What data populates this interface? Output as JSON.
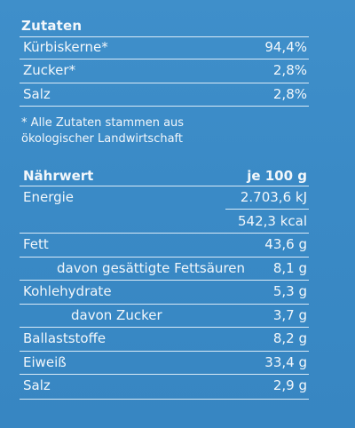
{
  "ingredients": {
    "title": "Zutaten",
    "items": [
      {
        "name": "Kürbiskerne*",
        "value": "94,4%"
      },
      {
        "name": "Zucker*",
        "value": "2,8%"
      },
      {
        "name": "Salz",
        "value": "2,8%"
      }
    ],
    "note_line1": "* Alle Zutaten stammen aus",
    "note_line2": "ökologischer Landwirtschaft"
  },
  "nutrition": {
    "header_label": "Nährwert",
    "header_value": "je 100 g",
    "rows": [
      {
        "name": "Energie",
        "value": "2.703,6 kJ"
      },
      {
        "name": "",
        "value": "542,3 kcal"
      },
      {
        "name": "Fett",
        "value": "43,6 g"
      },
      {
        "name": "davon gesättigte Fettsäuren",
        "value": "8,1 g"
      },
      {
        "name": "Kohlehydrate",
        "value": "5,3 g"
      },
      {
        "name": "davon Zucker",
        "value": "3,7 g"
      },
      {
        "name": "Ballaststoffe",
        "value": "8,2 g"
      },
      {
        "name": "Eiweiß",
        "value": "33,4 g"
      },
      {
        "name": "Salz",
        "value": "2,9 g"
      }
    ]
  }
}
